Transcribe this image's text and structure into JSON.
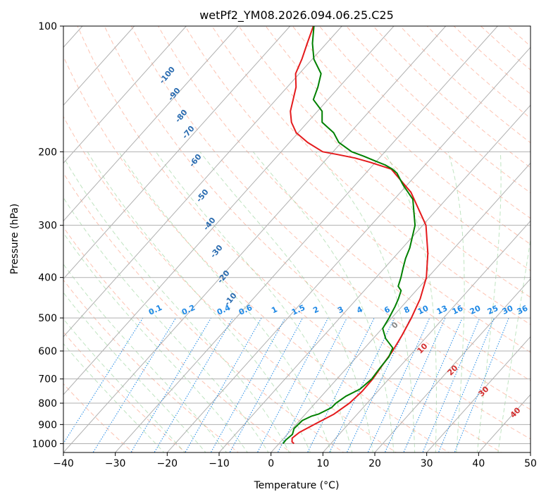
{
  "chart_data": {
    "type": "line",
    "subtype": "skew-t log-p diagram",
    "title": "wetPf2_YM08.2026.094.06.25.C25",
    "xlabel": "Temperature (°C)",
    "ylabel": "Pressure (hPa)",
    "xlim": [
      -40,
      50
    ],
    "ylim": [
      1050,
      100
    ],
    "y_scale": "log",
    "x_ticks": [
      "−40",
      "−30",
      "−20",
      "−10",
      "0",
      "10",
      "20",
      "30",
      "40",
      "50"
    ],
    "y_ticks": [
      "100",
      "200",
      "300",
      "400",
      "500",
      "600",
      "700",
      "800",
      "900",
      "1000"
    ],
    "grid": true,
    "series": [
      {
        "role": "temperature",
        "color": "#e41a1c",
        "points": [
          [
            1000,
            2.9
          ],
          [
            990,
            2.2
          ],
          [
            970,
            1.6
          ],
          [
            940,
            2.0
          ],
          [
            900,
            3.5
          ],
          [
            850,
            5.5
          ],
          [
            800,
            6.6
          ],
          [
            750,
            7.0
          ],
          [
            700,
            6.9
          ],
          [
            650,
            6.4
          ],
          [
            600,
            5.9
          ],
          [
            550,
            5.0
          ],
          [
            500,
            3.8
          ],
          [
            450,
            2.2
          ],
          [
            400,
            -0.3
          ],
          [
            350,
            -4.2
          ],
          [
            300,
            -9.4
          ],
          [
            250,
            -18.0
          ],
          [
            220,
            -25.8
          ],
          [
            212,
            -31.0
          ],
          [
            207,
            -34.7
          ],
          [
            203,
            -38.7
          ],
          [
            200,
            -42.0
          ],
          [
            190,
            -46.5
          ],
          [
            180,
            -50.4
          ],
          [
            170,
            -53.1
          ],
          [
            160,
            -55.2
          ],
          [
            150,
            -56.7
          ],
          [
            140,
            -58.3
          ],
          [
            130,
            -60.7
          ],
          [
            120,
            -62.0
          ],
          [
            110,
            -63.7
          ],
          [
            100,
            -65.5
          ]
        ]
      },
      {
        "role": "dewpoint",
        "color": "#008000",
        "points": [
          [
            1000,
            0.8
          ],
          [
            980,
            0.7
          ],
          [
            950,
            1.0
          ],
          [
            920,
            0.3
          ],
          [
            880,
            0.5
          ],
          [
            860,
            1.5
          ],
          [
            850,
            2.5
          ],
          [
            820,
            3.9
          ],
          [
            800,
            4.0
          ],
          [
            770,
            4.7
          ],
          [
            740,
            6.2
          ],
          [
            700,
            6.7
          ],
          [
            660,
            6.4
          ],
          [
            620,
            6.2
          ],
          [
            590,
            5.4
          ],
          [
            560,
            2.4
          ],
          [
            530,
            0.1
          ],
          [
            500,
            -0.5
          ],
          [
            470,
            -1.3
          ],
          [
            450,
            -2.0
          ],
          [
            430,
            -2.9
          ],
          [
            420,
            -4.2
          ],
          [
            400,
            -5.2
          ],
          [
            380,
            -6.4
          ],
          [
            360,
            -7.6
          ],
          [
            340,
            -8.6
          ],
          [
            300,
            -11.5
          ],
          [
            260,
            -16.4
          ],
          [
            240,
            -20.8
          ],
          [
            225,
            -24.0
          ],
          [
            220,
            -25.6
          ],
          [
            215,
            -27.7
          ],
          [
            210,
            -30.5
          ],
          [
            205,
            -33.3
          ],
          [
            200,
            -36.4
          ],
          [
            190,
            -40.5
          ],
          [
            180,
            -43.2
          ],
          [
            170,
            -47.2
          ],
          [
            160,
            -49.1
          ],
          [
            150,
            -52.8
          ],
          [
            140,
            -54.1
          ],
          [
            130,
            -55.8
          ],
          [
            120,
            -59.7
          ],
          [
            110,
            -62.7
          ],
          [
            100,
            -65.4
          ]
        ]
      }
    ],
    "dry_adiabat_labels": [
      "-100",
      "-90",
      "-80",
      "-70",
      "-60",
      "-50",
      "-40",
      "-30",
      "-20",
      "-10"
    ],
    "moist_adiabat_labels": [
      "0",
      "10",
      "20",
      "30",
      "40"
    ],
    "mixing_ratio_labels": [
      "0.1",
      "0.2",
      "0.4",
      "0.6",
      "1",
      "1.5",
      "2",
      "3",
      "4",
      "6",
      "8",
      "10",
      "13",
      "16",
      "20",
      "25",
      "30",
      "36"
    ]
  }
}
